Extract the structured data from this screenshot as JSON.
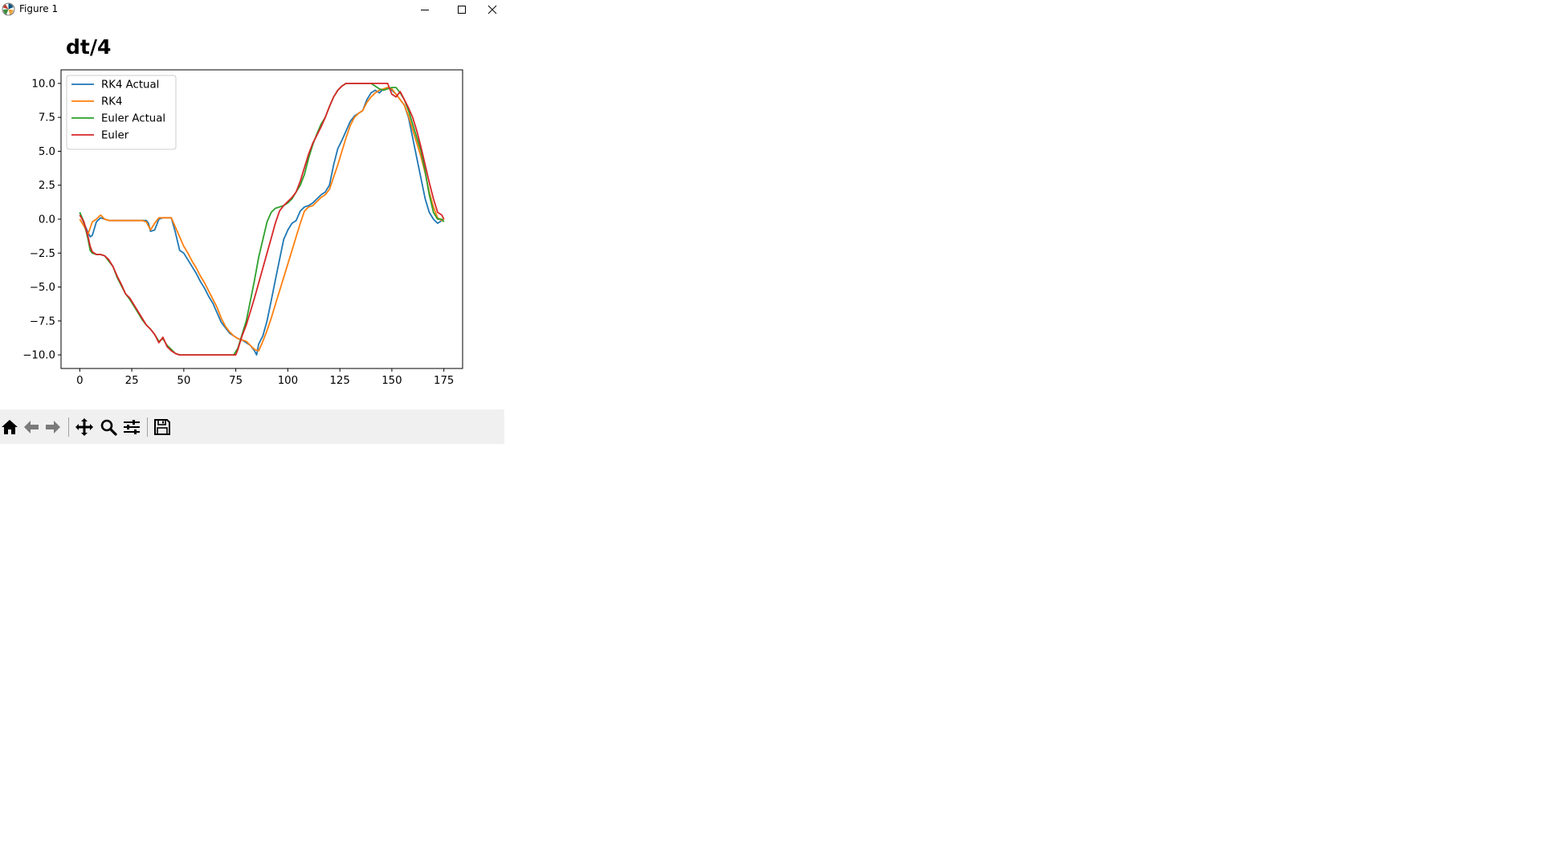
{
  "window": {
    "title": "Figure 1",
    "controls": [
      "minimize",
      "maximize",
      "close"
    ]
  },
  "toolbar": {
    "tools": [
      {
        "name": "home-icon",
        "tooltip": "Reset original view"
      },
      {
        "name": "back-icon",
        "tooltip": "Back"
      },
      {
        "name": "forward-icon",
        "tooltip": "Forward"
      },
      {
        "name": "pan-icon",
        "tooltip": "Pan"
      },
      {
        "name": "zoom-icon",
        "tooltip": "Zoom"
      },
      {
        "name": "configure-icon",
        "tooltip": "Configure subplots"
      },
      {
        "name": "save-icon",
        "tooltip": "Save"
      }
    ]
  },
  "chart_data": {
    "type": "line",
    "title": "dt/4",
    "xlabel": "",
    "ylabel": "",
    "xlim": [
      -9,
      184
    ],
    "ylim": [
      -11,
      11
    ],
    "xticks": [
      0,
      25,
      50,
      75,
      100,
      125,
      150,
      175
    ],
    "xtick_labels": [
      "0",
      "25",
      "50",
      "75",
      "100",
      "125",
      "150",
      "175"
    ],
    "yticks": [
      10,
      7.5,
      5,
      2.5,
      0,
      -2.5,
      -5,
      -7.5,
      -10
    ],
    "ytick_labels": [
      "10.0",
      "7.5",
      "5.0",
      "2.5",
      "0.0",
      "−2.5",
      "−5.0",
      "−7.5",
      "−10.0"
    ],
    "grid": false,
    "legend_position": "upper-left",
    "series": [
      {
        "name": "RK4 Actual",
        "color": "#1f77b4",
        "x": [
          0,
          2,
          4,
          5,
          6,
          8,
          10,
          12,
          14,
          20,
          25,
          30,
          32,
          33,
          34,
          36,
          38,
          40,
          42,
          44,
          46,
          48,
          50,
          52,
          54,
          56,
          58,
          60,
          62,
          64,
          66,
          68,
          70,
          72,
          74,
          76,
          78,
          80,
          82,
          84,
          85,
          86,
          88,
          90,
          92,
          94,
          96,
          98,
          100,
          102,
          104,
          106,
          108,
          110,
          112,
          114,
          116,
          118,
          120,
          122,
          124,
          126,
          128,
          130,
          132,
          134,
          136,
          138,
          140,
          142,
          144,
          146,
          148,
          150,
          152,
          154,
          156,
          158,
          160,
          162,
          164,
          166,
          168,
          170,
          172,
          174,
          175
        ],
        "y": [
          0.5,
          -0.3,
          -1.0,
          -1.3,
          -1.2,
          -0.2,
          0.1,
          0.0,
          -0.1,
          -0.1,
          -0.1,
          -0.1,
          -0.1,
          -0.3,
          -0.9,
          -0.8,
          0.0,
          0.1,
          0.1,
          0.1,
          -1.0,
          -2.3,
          -2.5,
          -3.0,
          -3.5,
          -4.0,
          -4.6,
          -5.1,
          -5.7,
          -6.2,
          -6.9,
          -7.6,
          -8.0,
          -8.4,
          -8.6,
          -8.8,
          -8.9,
          -9.1,
          -9.3,
          -9.7,
          -10.0,
          -9.2,
          -8.6,
          -7.5,
          -6.0,
          -4.5,
          -3.0,
          -1.5,
          -0.8,
          -0.3,
          -0.1,
          0.6,
          0.9,
          1.0,
          1.2,
          1.5,
          1.8,
          2.0,
          2.5,
          4.0,
          5.2,
          5.8,
          6.5,
          7.2,
          7.6,
          7.8,
          8.0,
          8.8,
          9.3,
          9.5,
          9.3,
          9.6,
          9.7,
          9.5,
          9.2,
          8.8,
          8.4,
          7.5,
          6.0,
          4.5,
          3.0,
          1.5,
          0.5,
          0.0,
          -0.3,
          -0.1,
          0.0
        ]
      },
      {
        "name": "RK4",
        "color": "#ff7f0e",
        "x": [
          0,
          2,
          4,
          6,
          8,
          10,
          12,
          14,
          20,
          25,
          30,
          32,
          34,
          36,
          38,
          40,
          42,
          44,
          46,
          48,
          50,
          52,
          54,
          56,
          58,
          60,
          62,
          64,
          66,
          68,
          70,
          72,
          74,
          76,
          78,
          80,
          82,
          84,
          86,
          88,
          90,
          92,
          94,
          96,
          98,
          100,
          102,
          104,
          106,
          108,
          110,
          112,
          114,
          116,
          118,
          120,
          122,
          124,
          126,
          128,
          130,
          132,
          134,
          136,
          138,
          140,
          142,
          144,
          146,
          148,
          150,
          152,
          154,
          156,
          158,
          160,
          162,
          164,
          166,
          168,
          170,
          172,
          174,
          175
        ],
        "y": [
          0.0,
          -0.5,
          -1.1,
          -0.2,
          0.0,
          0.3,
          0.0,
          -0.1,
          -0.1,
          -0.1,
          -0.1,
          -0.2,
          -0.8,
          -0.3,
          0.1,
          0.1,
          0.1,
          0.1,
          -0.6,
          -1.3,
          -2.0,
          -2.5,
          -3.1,
          -3.6,
          -4.2,
          -4.7,
          -5.3,
          -5.9,
          -6.5,
          -7.3,
          -7.9,
          -8.3,
          -8.6,
          -8.8,
          -8.9,
          -9.0,
          -9.3,
          -9.6,
          -9.7,
          -9.0,
          -8.2,
          -7.3,
          -6.3,
          -5.3,
          -4.3,
          -3.3,
          -2.3,
          -1.3,
          -0.3,
          0.6,
          0.9,
          1.0,
          1.3,
          1.6,
          1.8,
          2.2,
          3.1,
          4.0,
          5.0,
          6.0,
          6.9,
          7.5,
          7.8,
          8.0,
          8.6,
          9.0,
          9.3,
          9.5,
          9.6,
          9.7,
          9.6,
          9.2,
          8.8,
          8.4,
          7.6,
          6.6,
          5.6,
          4.6,
          3.4,
          2.0,
          0.9,
          0.1,
          -0.1,
          0.0
        ]
      },
      {
        "name": "Euler Actual",
        "color": "#2ca02c",
        "x": [
          0,
          2,
          4,
          5,
          6,
          8,
          10,
          12,
          14,
          16,
          18,
          20,
          22,
          24,
          26,
          28,
          30,
          32,
          34,
          36,
          38,
          40,
          42,
          44,
          46,
          48,
          50,
          52,
          54,
          56,
          58,
          60,
          62,
          64,
          66,
          68,
          70,
          72,
          74,
          76,
          78,
          80,
          82,
          84,
          86,
          88,
          90,
          92,
          94,
          96,
          98,
          100,
          102,
          104,
          106,
          108,
          110,
          112,
          114,
          116,
          118,
          120,
          122,
          124,
          126,
          128,
          130,
          132,
          134,
          136,
          138,
          140,
          142,
          144,
          146,
          148,
          150,
          152,
          154,
          156,
          158,
          160,
          162,
          164,
          166,
          168,
          170,
          172,
          174,
          175
        ],
        "y": [
          0.5,
          -0.2,
          -1.5,
          -2.3,
          -2.5,
          -2.6,
          -2.6,
          -2.7,
          -3.1,
          -3.5,
          -4.3,
          -4.9,
          -5.5,
          -5.9,
          -6.4,
          -6.9,
          -7.4,
          -7.8,
          -8.1,
          -8.5,
          -9.0,
          -8.8,
          -9.3,
          -9.6,
          -9.9,
          -10.0,
          -10.0,
          -10.0,
          -10.0,
          -10.0,
          -10.0,
          -10.0,
          -10.0,
          -10.0,
          -10.0,
          -10.0,
          -10.0,
          -10.0,
          -10.0,
          -9.5,
          -8.5,
          -7.5,
          -6.0,
          -4.5,
          -2.8,
          -1.5,
          -0.2,
          0.5,
          0.8,
          0.9,
          1.0,
          1.2,
          1.5,
          2.0,
          2.5,
          3.3,
          4.5,
          5.5,
          6.3,
          7.0,
          7.5,
          8.3,
          9.0,
          9.5,
          9.8,
          10.0,
          10.0,
          10.0,
          10.0,
          10.0,
          10.0,
          10.0,
          9.8,
          9.6,
          9.5,
          9.6,
          9.7,
          9.7,
          9.3,
          8.8,
          8.0,
          7.0,
          6.0,
          5.0,
          3.5,
          1.8,
          0.5,
          0.0,
          0.0,
          -0.2
        ]
      },
      {
        "name": "Euler",
        "color": "#d62728",
        "x": [
          0,
          2,
          4,
          5,
          6,
          8,
          10,
          12,
          14,
          16,
          18,
          20,
          22,
          24,
          26,
          28,
          30,
          32,
          34,
          36,
          38,
          40,
          42,
          44,
          46,
          48,
          50,
          52,
          54,
          56,
          58,
          60,
          62,
          64,
          66,
          68,
          70,
          72,
          74,
          75,
          76,
          78,
          80,
          82,
          84,
          86,
          88,
          90,
          92,
          94,
          96,
          98,
          100,
          102,
          104,
          106,
          108,
          110,
          112,
          114,
          116,
          118,
          120,
          122,
          124,
          126,
          128,
          130,
          132,
          134,
          136,
          138,
          140,
          142,
          144,
          146,
          148,
          150,
          152,
          154,
          156,
          158,
          160,
          162,
          164,
          166,
          168,
          170,
          172,
          174,
          175
        ],
        "y": [
          0.3,
          -0.2,
          -1.3,
          -2.0,
          -2.4,
          -2.6,
          -2.6,
          -2.7,
          -3.0,
          -3.5,
          -4.2,
          -4.8,
          -5.5,
          -5.8,
          -6.3,
          -6.8,
          -7.3,
          -7.8,
          -8.1,
          -8.5,
          -9.1,
          -8.7,
          -9.4,
          -9.7,
          -9.9,
          -10.0,
          -10.0,
          -10.0,
          -10.0,
          -10.0,
          -10.0,
          -10.0,
          -10.0,
          -10.0,
          -10.0,
          -10.0,
          -10.0,
          -10.0,
          -10.0,
          -10.0,
          -9.6,
          -8.6,
          -7.8,
          -6.8,
          -5.8,
          -4.7,
          -3.6,
          -2.5,
          -1.4,
          -0.3,
          0.6,
          1.0,
          1.3,
          1.6,
          2.0,
          2.8,
          3.8,
          4.8,
          5.6,
          6.2,
          6.8,
          7.5,
          8.3,
          9.0,
          9.5,
          9.8,
          10.0,
          10.0,
          10.0,
          10.0,
          10.0,
          10.0,
          10.0,
          10.0,
          10.0,
          10.0,
          10.0,
          9.2,
          9.0,
          9.4,
          8.8,
          8.2,
          7.5,
          6.5,
          5.3,
          4.0,
          2.7,
          1.5,
          0.5,
          0.3,
          0.0
        ]
      }
    ]
  }
}
